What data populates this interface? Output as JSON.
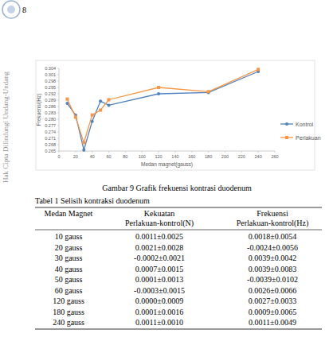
{
  "page_number": "8",
  "side_text": "Hak Cipta Dilindungi Undang-Undang",
  "chart_data": {
    "type": "line",
    "xlabel": "Medan magnet(gauss)",
    "ylabel": "Frekuensi(Hz)",
    "x": [
      10,
      20,
      30,
      40,
      50,
      60,
      120,
      180,
      240
    ],
    "series": [
      {
        "name": "Kontrol",
        "color": "#4f81bd",
        "marker": "circle",
        "values": [
          0.2875,
          0.282,
          0.2655,
          0.279,
          0.2885,
          0.2866,
          0.292,
          0.2926,
          0.3025
        ]
      },
      {
        "name": "Perlakuan",
        "color": "#f79646",
        "marker": "square",
        "values": [
          0.2895,
          0.281,
          0.269,
          0.282,
          0.2843,
          0.2892,
          0.295,
          0.293,
          0.3035
        ]
      }
    ],
    "xlim": [
      0,
      260
    ],
    "xticks": [
      0,
      20,
      40,
      60,
      80,
      100,
      120,
      140,
      160,
      180,
      200,
      220,
      240,
      260
    ],
    "ylim": [
      0.265,
      0.304
    ],
    "yticks": [
      0.265,
      0.268,
      0.271,
      0.274,
      0.277,
      {
        "value": 0.28,
        "label": "0.280"
      },
      0.283,
      0.286,
      0.289,
      0.292,
      0.295,
      0.298,
      0.301,
      0.304
    ],
    "grid": false,
    "legend": "right"
  },
  "figure_caption": "Gambar 9  Grafik frekuensi kontrasi duodenum",
  "table": {
    "title": "Tabel 1  Selisih kontraksi duodenum",
    "header": [
      [
        "Medan Magnet"
      ],
      [
        "Kekuatan",
        "Perlakuan-kontrol(N)"
      ],
      [
        "Frekuensi",
        "Perlakuan-kontrol(Hz)"
      ]
    ],
    "rows": [
      [
        "10 gauss",
        "0.0011±0.0025",
        "0.0018±0.0054"
      ],
      [
        "20 gauss",
        "0.0021±0.0028",
        "-0.0024±0.0056"
      ],
      [
        "30 gauss",
        "-0.0002±0.0021",
        "0.0039±0.0042"
      ],
      [
        "40 gauss",
        "0.0007±0.0015",
        "0.0039±0.0083"
      ],
      [
        "50 gauss",
        "0.0001±0.0013",
        "-0.0039±0.0102"
      ],
      [
        "60 gauss",
        "-0.0003±0.0015",
        "0.0026±0.0066"
      ],
      [
        "120 gauss",
        "0.0000±0.0009",
        "0.0027±0.0033"
      ],
      [
        "180 gauss",
        "0.0001±0.0016",
        "0.0009±0.0065"
      ],
      [
        "240 gauss",
        "0.0011±0.0010",
        "0.0011±0.0049"
      ]
    ]
  }
}
